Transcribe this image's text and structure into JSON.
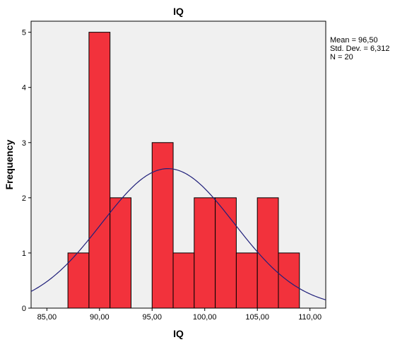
{
  "chart_data": {
    "type": "bar",
    "title": "IQ",
    "xlabel": "IQ",
    "ylabel": "Frequency",
    "xlim": [
      83.5,
      111.5
    ],
    "ylim": [
      0,
      5.2
    ],
    "x_ticks": [
      85,
      90,
      95,
      100,
      105,
      110
    ],
    "x_tick_labels": [
      "85,00",
      "90,00",
      "95,00",
      "100,00",
      "105,00",
      "110,00"
    ],
    "y_ticks": [
      0,
      1,
      2,
      3,
      4,
      5
    ],
    "y_tick_labels": [
      "0",
      "1",
      "2",
      "3",
      "4",
      "5"
    ],
    "bin_width": 2,
    "bins": [
      {
        "start": 87,
        "end": 89,
        "count": 1
      },
      {
        "start": 89,
        "end": 91,
        "count": 5
      },
      {
        "start": 91,
        "end": 93,
        "count": 2
      },
      {
        "start": 93,
        "end": 95,
        "count": 0
      },
      {
        "start": 95,
        "end": 97,
        "count": 3
      },
      {
        "start": 97,
        "end": 99,
        "count": 1
      },
      {
        "start": 99,
        "end": 101,
        "count": 2
      },
      {
        "start": 101,
        "end": 103,
        "count": 2
      },
      {
        "start": 103,
        "end": 105,
        "count": 1
      },
      {
        "start": 105,
        "end": 107,
        "count": 2
      },
      {
        "start": 107,
        "end": 109,
        "count": 1
      }
    ],
    "normal_curve": {
      "mean": 96.5,
      "std_dev": 6.312,
      "n": 20
    },
    "stats_text": [
      "Mean = 96,50",
      "Std. Dev. = 6,312",
      "N = 20"
    ],
    "colors": {
      "bar_fill": "#f2323c",
      "bar_stroke": "#000000",
      "plot_background": "#f0f0f0",
      "curve": "#1f1f7a"
    }
  }
}
